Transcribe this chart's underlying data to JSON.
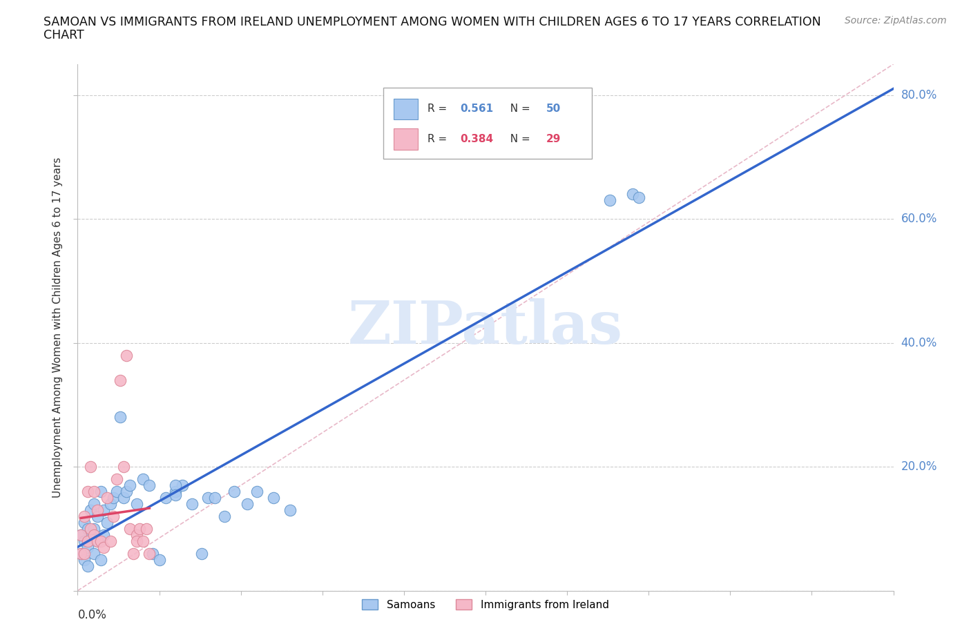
{
  "title_line1": "SAMOAN VS IMMIGRANTS FROM IRELAND UNEMPLOYMENT AMONG WOMEN WITH CHILDREN AGES 6 TO 17 YEARS CORRELATION",
  "title_line2": "CHART",
  "source": "Source: ZipAtlas.com",
  "ylabel": "Unemployment Among Women with Children Ages 6 to 17 years",
  "xlim": [
    0,
    0.25
  ],
  "ylim": [
    0,
    0.85
  ],
  "ytick_values": [
    0.0,
    0.2,
    0.4,
    0.6,
    0.8
  ],
  "samoans_color": "#a8c8f0",
  "samoans_edge": "#6699cc",
  "ireland_color": "#f5b8c8",
  "ireland_edge": "#dd8899",
  "regression_blue_color": "#3366cc",
  "regression_pink_color": "#dd4466",
  "diagonal_color": "#e8b8c8",
  "diagonal_style": "--",
  "watermark_color": "#dde8f8",
  "watermark_text": "ZIPatlas",
  "background_color": "#ffffff",
  "grid_color": "#cccccc",
  "ytick_label_color": "#5588cc",
  "legend_r1_val": "0.561",
  "legend_n1_val": "50",
  "legend_r2_val": "0.384",
  "legend_n2_val": "29",
  "samoans_x": [
    0.001,
    0.001,
    0.002,
    0.002,
    0.002,
    0.003,
    0.003,
    0.003,
    0.004,
    0.004,
    0.005,
    0.005,
    0.005,
    0.006,
    0.006,
    0.007,
    0.007,
    0.008,
    0.008,
    0.009,
    0.01,
    0.011,
    0.012,
    0.013,
    0.014,
    0.015,
    0.016,
    0.018,
    0.02,
    0.022,
    0.023,
    0.025,
    0.027,
    0.03,
    0.032,
    0.035,
    0.038,
    0.04,
    0.042,
    0.045,
    0.048,
    0.052,
    0.06,
    0.065,
    0.03,
    0.163,
    0.17,
    0.172,
    0.03,
    0.055
  ],
  "samoans_y": [
    0.06,
    0.09,
    0.05,
    0.08,
    0.11,
    0.07,
    0.1,
    0.04,
    0.09,
    0.13,
    0.06,
    0.1,
    0.14,
    0.08,
    0.12,
    0.05,
    0.16,
    0.09,
    0.13,
    0.11,
    0.14,
    0.15,
    0.16,
    0.28,
    0.15,
    0.16,
    0.17,
    0.14,
    0.18,
    0.17,
    0.06,
    0.05,
    0.15,
    0.16,
    0.17,
    0.14,
    0.06,
    0.15,
    0.15,
    0.12,
    0.16,
    0.14,
    0.15,
    0.13,
    0.17,
    0.63,
    0.64,
    0.635,
    0.155,
    0.16
  ],
  "ireland_x": [
    0.001,
    0.001,
    0.002,
    0.002,
    0.003,
    0.003,
    0.004,
    0.004,
    0.005,
    0.005,
    0.006,
    0.006,
    0.007,
    0.008,
    0.009,
    0.01,
    0.011,
    0.012,
    0.013,
    0.014,
    0.015,
    0.016,
    0.017,
    0.018,
    0.018,
    0.019,
    0.02,
    0.021,
    0.022
  ],
  "ireland_y": [
    0.06,
    0.09,
    0.06,
    0.12,
    0.08,
    0.16,
    0.1,
    0.2,
    0.09,
    0.16,
    0.08,
    0.13,
    0.08,
    0.07,
    0.15,
    0.08,
    0.12,
    0.18,
    0.34,
    0.2,
    0.38,
    0.1,
    0.06,
    0.09,
    0.08,
    0.1,
    0.08,
    0.1,
    0.06
  ]
}
